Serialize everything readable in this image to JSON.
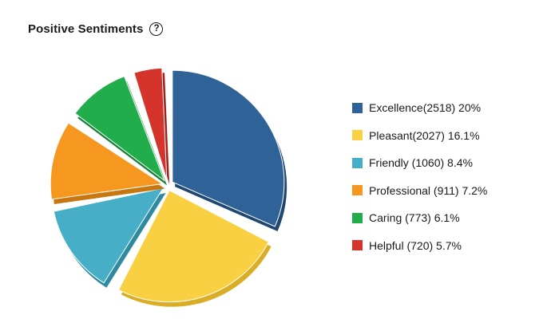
{
  "header": {
    "title": "Positive Sentiments",
    "help_glyph": "?",
    "help_icon": "help-circle-icon"
  },
  "chart_data": {
    "type": "pie",
    "title": "Positive Sentiments",
    "legend_position": "right",
    "slices": [
      {
        "label": "Excellence(2518) 20%",
        "category": "Excellence",
        "value": 2518,
        "percent": 20,
        "color": "#2f6296",
        "dark": "#1f4770"
      },
      {
        "label": "Pleasant(2027) 16.1%",
        "category": "Pleasant",
        "value": 2027,
        "percent": 16.1,
        "color": "#f8d042",
        "dark": "#d9ad26"
      },
      {
        "label": "Friendly (1060) 8.4%",
        "category": "Friendly",
        "value": 1060,
        "percent": 8.4,
        "color": "#46aec6",
        "dark": "#2f8aa0"
      },
      {
        "label": "Professional (911) 7.2%",
        "category": "Professional",
        "value": 911,
        "percent": 7.2,
        "color": "#f6981f",
        "dark": "#c87610"
      },
      {
        "label": "Caring (773) 6.1%",
        "category": "Caring",
        "value": 773,
        "percent": 6.1,
        "color": "#22ad4d",
        "dark": "#178237"
      },
      {
        "label": "Helpful (720) 5.7%",
        "category": "Helpful",
        "value": 720,
        "percent": 5.7,
        "color": "#d4342b",
        "dark": "#a42219"
      }
    ]
  }
}
